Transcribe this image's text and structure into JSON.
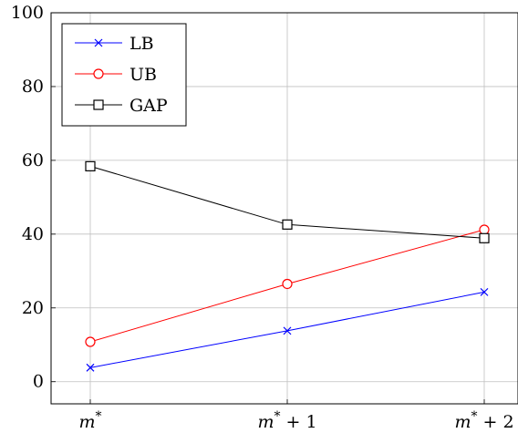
{
  "chart_data": {
    "type": "line",
    "title": "",
    "xlabel": "",
    "ylabel": "",
    "categories": [
      "m*",
      "m* + 1",
      "m* + 2"
    ],
    "category_labels": [
      {
        "base": "m",
        "sup": "*",
        "suffix": ""
      },
      {
        "base": "m",
        "sup": "*",
        "suffix": " + 1"
      },
      {
        "base": "m",
        "sup": "*",
        "suffix": " + 2"
      }
    ],
    "ylim": [
      -6,
      100
    ],
    "yticks": [
      0,
      20,
      40,
      60,
      80,
      100
    ],
    "grid": true,
    "legend_position": "top-left",
    "series": [
      {
        "name": "LB",
        "values": [
          3.8,
          13.8,
          24.3
        ],
        "color": "#0000ff",
        "marker": "cross"
      },
      {
        "name": "UB",
        "values": [
          10.8,
          26.5,
          41.2
        ],
        "color": "#ff0000",
        "marker": "circle"
      },
      {
        "name": "GAP",
        "values": [
          58.4,
          42.6,
          38.9
        ],
        "color": "#000000",
        "marker": "square"
      }
    ]
  }
}
